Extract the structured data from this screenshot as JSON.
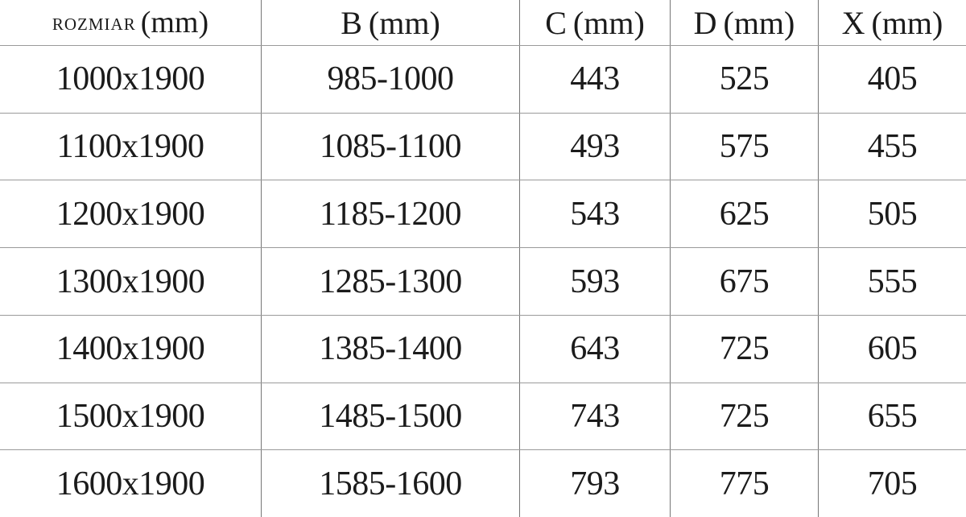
{
  "page": {
    "background_color": "#ffffff",
    "text_color": "#1b1b1b",
    "vertical_grid_color": "#767676",
    "horizontal_grid_color": "#9a9a9a"
  },
  "table": {
    "headers": [
      {
        "name": "ROZMIAR",
        "unit": "(mm)"
      },
      {
        "name": "B",
        "unit": "(mm)"
      },
      {
        "name": "C",
        "unit": "(mm)"
      },
      {
        "name": "D",
        "unit": "(mm)"
      },
      {
        "name": "X",
        "unit": "(mm)"
      }
    ]
  },
  "chart_data": {
    "type": "table",
    "title": "",
    "columns": [
      "ROZMIAR (mm)",
      "B (mm)",
      "C (mm)",
      "D (mm)",
      "X (mm)"
    ],
    "rows": [
      [
        "1000x1900",
        "985-1000",
        "443",
        "525",
        "405"
      ],
      [
        "1100x1900",
        "1085-1100",
        "493",
        "575",
        "455"
      ],
      [
        "1200x1900",
        "1185-1200",
        "543",
        "625",
        "505"
      ],
      [
        "1300x1900",
        "1285-1300",
        "593",
        "675",
        "555"
      ],
      [
        "1400x1900",
        "1385-1400",
        "643",
        "725",
        "605"
      ],
      [
        "1500x1900",
        "1485-1500",
        "743",
        "725",
        "655"
      ],
      [
        "1600x1900",
        "1585-1600",
        "793",
        "775",
        "705"
      ]
    ]
  }
}
